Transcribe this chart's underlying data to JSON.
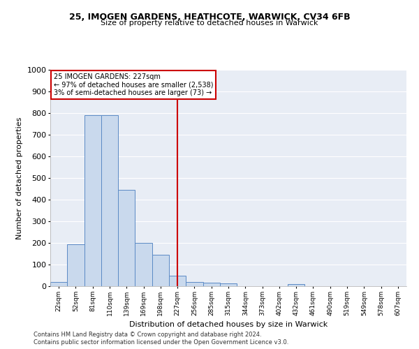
{
  "title1": "25, IMOGEN GARDENS, HEATHCOTE, WARWICK, CV34 6FB",
  "title2": "Size of property relative to detached houses in Warwick",
  "xlabel": "Distribution of detached houses by size in Warwick",
  "ylabel": "Number of detached properties",
  "categories": [
    "22sqm",
    "52sqm",
    "81sqm",
    "110sqm",
    "139sqm",
    "169sqm",
    "198sqm",
    "227sqm",
    "256sqm",
    "285sqm",
    "315sqm",
    "344sqm",
    "373sqm",
    "402sqm",
    "432sqm",
    "461sqm",
    "490sqm",
    "519sqm",
    "549sqm",
    "578sqm",
    "607sqm"
  ],
  "values": [
    20,
    195,
    790,
    790,
    445,
    200,
    145,
    50,
    20,
    15,
    12,
    0,
    0,
    0,
    10,
    0,
    0,
    0,
    0,
    0,
    0
  ],
  "bar_color": "#c9d9ed",
  "bar_edge_color": "#5b8ac5",
  "vline_x_index": 7,
  "vline_color": "#cc0000",
  "annotation_title": "25 IMOGEN GARDENS: 227sqm",
  "annotation_line1": "← 97% of detached houses are smaller (2,538)",
  "annotation_line2": "3% of semi-detached houses are larger (73) →",
  "annotation_box_color": "#cc0000",
  "background_color": "#e8edf5",
  "grid_color": "#ffffff",
  "footer1": "Contains HM Land Registry data © Crown copyright and database right 2024.",
  "footer2": "Contains public sector information licensed under the Open Government Licence v3.0.",
  "ylim": [
    0,
    1000
  ],
  "yticks": [
    0,
    100,
    200,
    300,
    400,
    500,
    600,
    700,
    800,
    900,
    1000
  ]
}
